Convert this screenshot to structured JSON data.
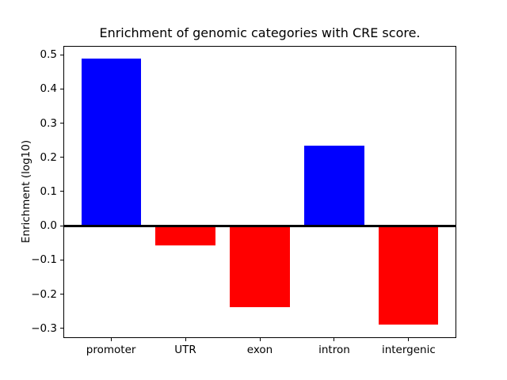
{
  "chart_data": {
    "type": "bar",
    "title": "Enrichment of genomic categories with CRE score.",
    "ylabel": "Enrichment (log10)",
    "xlabel": "",
    "categories": [
      "promoter",
      "UTR",
      "exon",
      "intron",
      "intergenic"
    ],
    "values": [
      0.488,
      -0.058,
      -0.238,
      0.235,
      -0.29
    ],
    "bar_colors": [
      "#0000ff",
      "#ff0000",
      "#ff0000",
      "#0000ff",
      "#ff0000"
    ],
    "color_meaning": {
      "positive": "#0000ff",
      "negative": "#ff0000"
    },
    "bar_width": 0.8,
    "yticks": [
      0.5,
      0.4,
      0.3,
      0.2,
      0.1,
      0.0,
      -0.1,
      -0.2,
      -0.3
    ],
    "ytick_labels": [
      "0.5",
      "0.4",
      "0.3",
      "0.2",
      "0.1",
      "0.0",
      "−0.1",
      "−0.2",
      "−0.3"
    ],
    "ylim": [
      -0.329,
      0.527
    ],
    "xlim": [
      -0.64,
      4.64
    ],
    "grid": false,
    "legend": "none",
    "zero_line": {
      "value": 0.0,
      "color": "#000000"
    },
    "axis_color": "#000000",
    "background": "#ffffff"
  }
}
